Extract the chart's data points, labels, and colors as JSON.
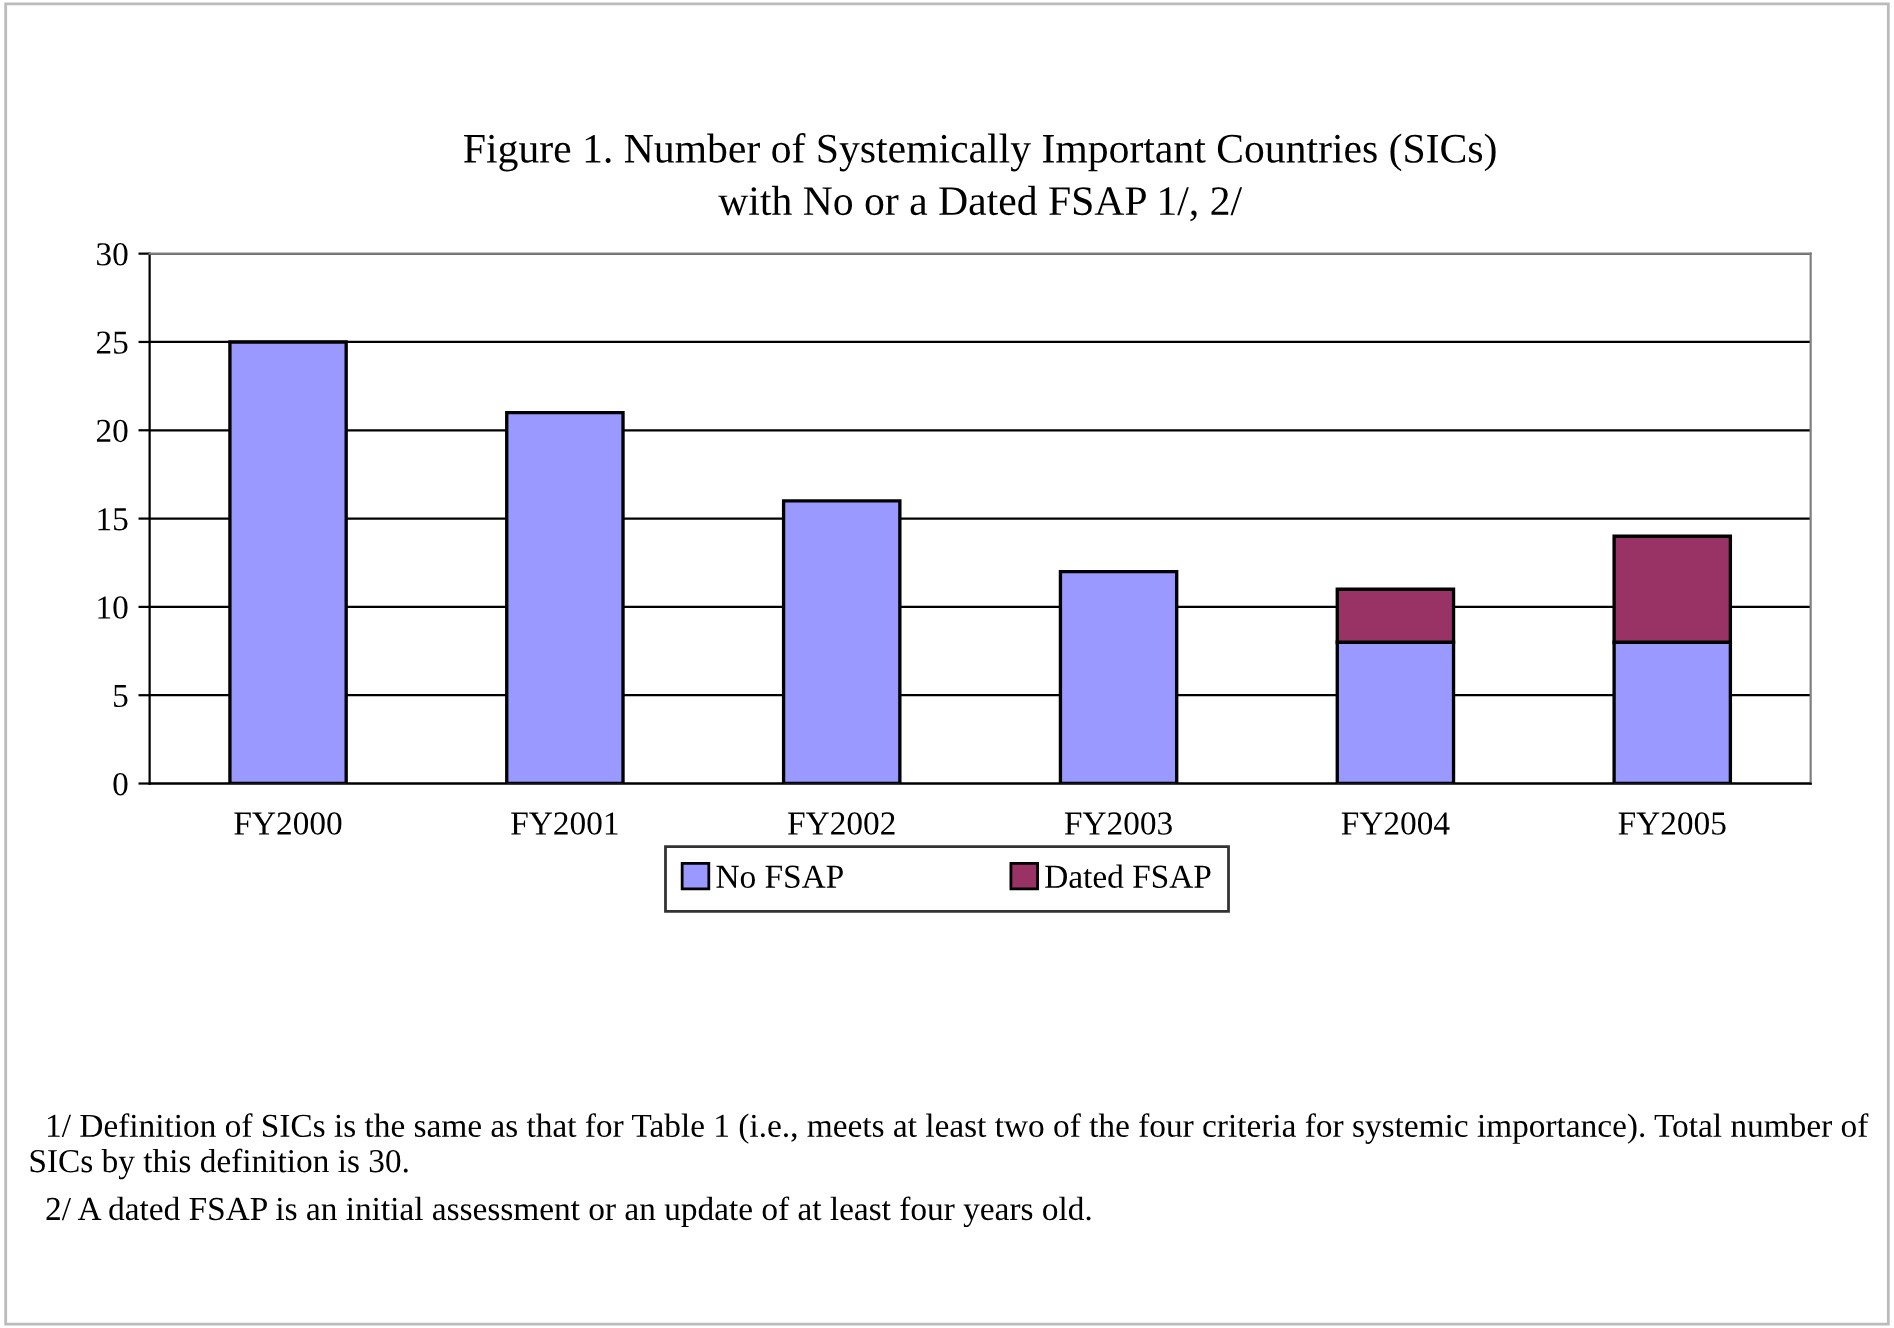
{
  "chart_data": {
    "type": "bar",
    "title": "Figure 1. Number of Systemically Important Countries (SICs)\nwith No or a Dated FSAP 1/, 2/",
    "categories": [
      "FY2000",
      "FY2001",
      "FY2002",
      "FY2003",
      "FY2004",
      "FY2005"
    ],
    "stacked": true,
    "series": [
      {
        "name": "No FSAP",
        "color": "#9999ff",
        "values": [
          25,
          21,
          16,
          12,
          8,
          8
        ]
      },
      {
        "name": "Dated FSAP",
        "color": "#993366",
        "values": [
          null,
          null,
          null,
          null,
          3,
          6
        ]
      }
    ],
    "ylim": [
      0,
      30
    ],
    "yticks": [
      0,
      5,
      10,
      15,
      20,
      25,
      30
    ],
    "grid": "y",
    "legend": "bottom",
    "annotations": [
      "1/ Definition of SICs is the same as that for Table 1 (i.e., meets at least two of the four criteria for systemic importance). Total number of SICs by this definition is 30.",
      "2/ A dated FSAP is an initial assessment or an update of at least four years old."
    ]
  }
}
